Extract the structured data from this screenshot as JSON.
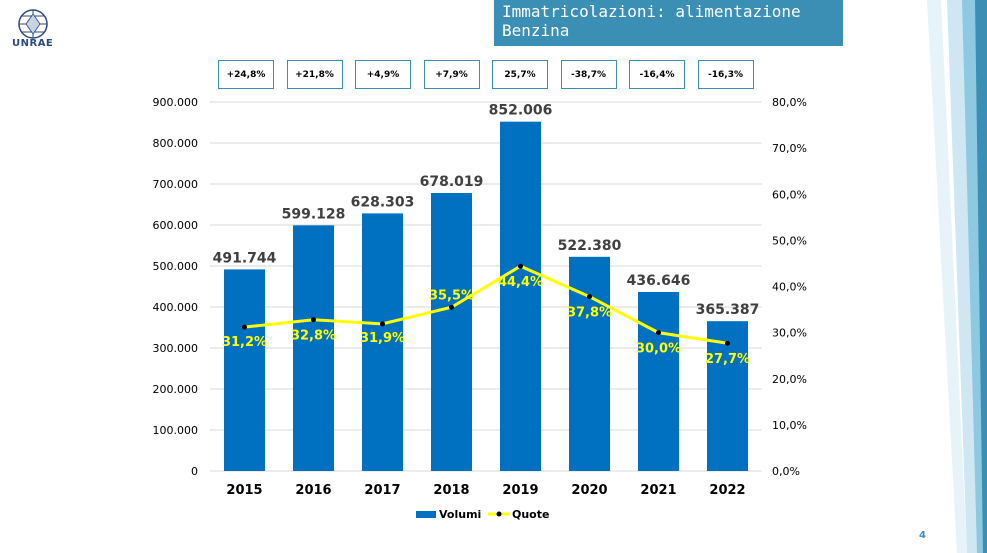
{
  "header": {
    "logo_text": "UNRAE",
    "title": "Immatricolazioni: alimentazione Benzina",
    "page_number": "4"
  },
  "growth_labels": [
    "+24,8%",
    "+21,8%",
    "+4,9%",
    "+7,9%",
    "25,7%",
    "-38,7%",
    "-16,4%",
    "-16,3%"
  ],
  "chart_data": {
    "type": "bar",
    "categories": [
      "2015",
      "2016",
      "2017",
      "2018",
      "2019",
      "2020",
      "2021",
      "2022"
    ],
    "series": [
      {
        "name": "Volumi",
        "type": "bar",
        "axis": "left",
        "color": "#0070c0",
        "values": [
          491744,
          599128,
          628303,
          678019,
          852006,
          522380,
          436646,
          365387
        ],
        "labels": [
          "491.744",
          "599.128",
          "628.303",
          "678.019",
          "852.006",
          "522.380",
          "436.646",
          "365.387"
        ]
      },
      {
        "name": "Quote",
        "type": "line",
        "axis": "right",
        "color": "#ffff00",
        "values": [
          31.2,
          32.8,
          31.9,
          35.5,
          44.4,
          37.8,
          30.0,
          27.7
        ],
        "labels": [
          "31,2%",
          "32,8%",
          "31,9%",
          "35,5%",
          "44,4%",
          "37,8%",
          "30,0%",
          "27,7%"
        ]
      }
    ],
    "y_left": {
      "ylim": [
        0,
        900000
      ],
      "ticks": [
        "0",
        "100.000",
        "200.000",
        "300.000",
        "400.000",
        "500.000",
        "600.000",
        "700.000",
        "800.000",
        "900.000"
      ]
    },
    "y_right": {
      "ylim": [
        0,
        80
      ],
      "ticks": [
        "0,0%",
        "10,0%",
        "20,0%",
        "30,0%",
        "40,0%",
        "50,0%",
        "60,0%",
        "70,0%",
        "80,0%"
      ]
    },
    "grid": true,
    "legend": "bottom"
  }
}
